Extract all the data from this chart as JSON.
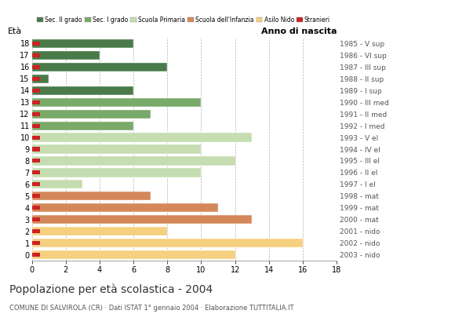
{
  "ages": [
    18,
    17,
    16,
    15,
    14,
    13,
    12,
    11,
    10,
    9,
    8,
    7,
    6,
    5,
    4,
    3,
    2,
    1,
    0
  ],
  "values": [
    6,
    4,
    8,
    1,
    6,
    10,
    7,
    6,
    13,
    10,
    12,
    10,
    3,
    7,
    11,
    13,
    8,
    16,
    12
  ],
  "stranieri": [
    1,
    1,
    1,
    1,
    1,
    1,
    1,
    1,
    1,
    1,
    1,
    1,
    1,
    1,
    1,
    1,
    1,
    1,
    1
  ],
  "colors": {
    "sec2": "#4a7a4a",
    "sec1": "#7aaa6a",
    "primaria": "#c5ddb0",
    "infanzia": "#d4885a",
    "nido": "#f5d080",
    "stranieri": "#cc2222"
  },
  "bar_colors": [
    "sec2",
    "sec2",
    "sec2",
    "sec2",
    "sec2",
    "sec1",
    "sec1",
    "sec1",
    "primaria",
    "primaria",
    "primaria",
    "primaria",
    "primaria",
    "infanzia",
    "infanzia",
    "infanzia",
    "nido",
    "nido",
    "nido"
  ],
  "right_labels": [
    "1985 - V sup",
    "1986 - VI sup",
    "1987 - III sup",
    "1988 - II sup",
    "1989 - I sup",
    "1990 - III med",
    "1991 - II med",
    "1992 - I med",
    "1993 - V el",
    "1994 - IV el",
    "1995 - III el",
    "1996 - II el",
    "1997 - I el",
    "1998 - mat",
    "1999 - mat",
    "2000 - mat",
    "2001 - nido",
    "2002 - nido",
    "2003 - nido"
  ],
  "title": "Popolazione per età scolastica - 2004",
  "subtitle": "COMUNE DI SALVIROLA (CR) · Dati ISTAT 1° gennaio 2004 · Elaborazione TUTTITALIA.IT",
  "ylabel_left": "Età",
  "ylabel_right": "Anno di nascita",
  "xlim": [
    0,
    18
  ],
  "xticks": [
    0,
    2,
    4,
    6,
    8,
    10,
    12,
    14,
    16,
    18
  ],
  "legend_labels": [
    "Sec. II grado",
    "Sec. I grado",
    "Scuola Primaria",
    "Scuola dell'Infanzia",
    "Asilo Nido",
    "Stranieri"
  ]
}
